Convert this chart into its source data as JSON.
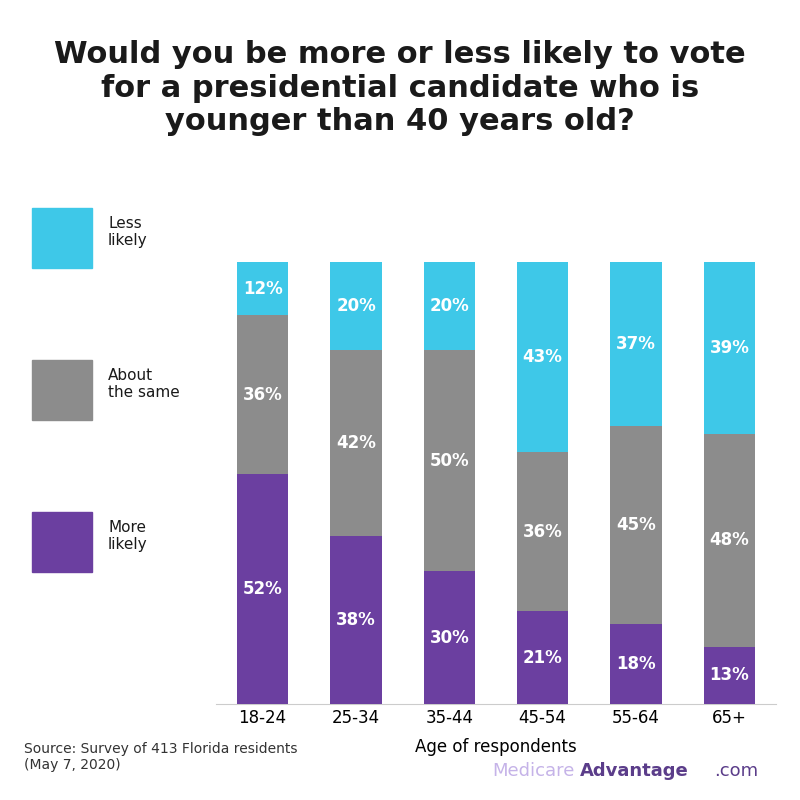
{
  "title": "Would you be more or less likely to vote\nfor a presidential candidate who is\nyounger than 40 years old?",
  "categories": [
    "18-24",
    "25-34",
    "35-44",
    "45-54",
    "55-64",
    "65+"
  ],
  "more_likely": [
    52,
    38,
    30,
    21,
    18,
    13
  ],
  "about_same": [
    36,
    42,
    50,
    36,
    45,
    48
  ],
  "less_likely": [
    12,
    20,
    20,
    43,
    37,
    39
  ],
  "color_more": "#6b3fa0",
  "color_same": "#8c8c8c",
  "color_less": "#3ec8e8",
  "xlabel": "Age of respondents",
  "legend_labels": [
    "Less\nlikely",
    "About\nthe same",
    "More\nlikely"
  ],
  "source_text": "Source: Survey of 413 Florida residents\n(May 7, 2020)",
  "brand_text_light": "Medicare",
  "brand_text_dark": "Advantage",
  "brand_text_dot": ".com",
  "background_color": "#ffffff",
  "title_fontsize": 22,
  "label_fontsize": 12,
  "tick_fontsize": 12,
  "source_fontsize": 10,
  "brand_fontsize": 13
}
